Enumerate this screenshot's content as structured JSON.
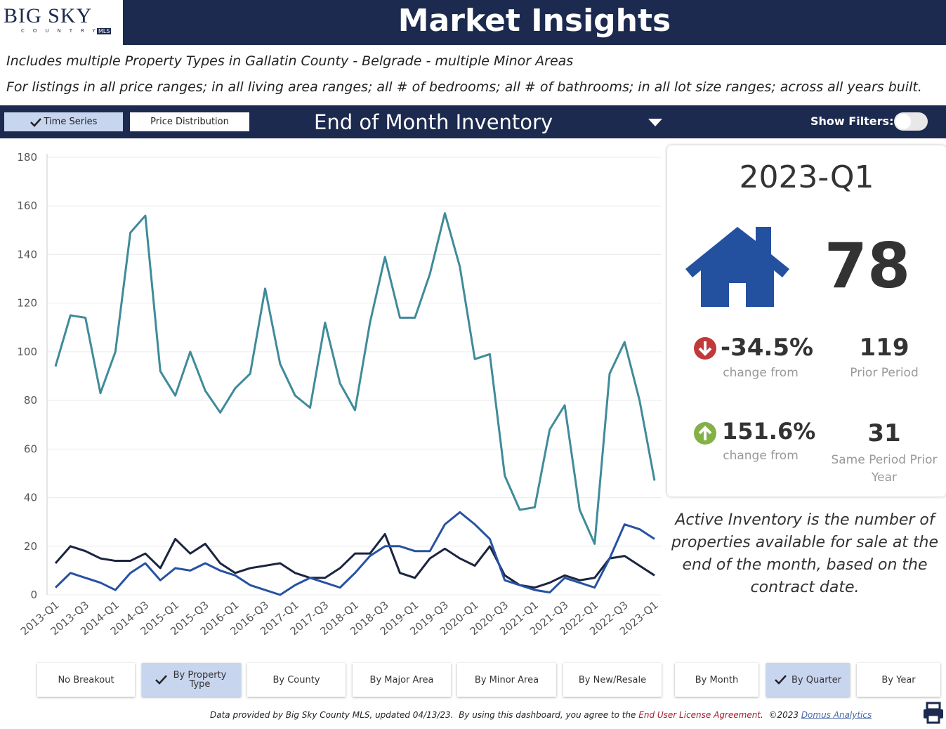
{
  "header": {
    "logo": "BIG SKY",
    "logo_sub": "COUNTRY",
    "logo_badge": "MLS",
    "title": "Market Insights"
  },
  "filters_text": [
    "Includes multiple Property Types in Gallatin County - Belgrade - multiple Minor Areas",
    "For listings in all price ranges; in all living area ranges; all # of bedrooms; all # of bathrooms; in all lot size ranges; across all years built."
  ],
  "toolbar": {
    "tabs": [
      "Time Series",
      "Price Distribution"
    ],
    "measure": "End of Month Inventory",
    "show_filters": "Show Filters:"
  },
  "chart_data": {
    "type": "line",
    "categories": [
      "2013-Q1",
      null,
      "2013-Q3",
      null,
      "2014-Q1",
      null,
      "2014-Q3",
      null,
      "2015-Q1",
      null,
      "2015-Q3",
      null,
      "2016-Q1",
      null,
      "2016-Q3",
      null,
      "2017-Q1",
      null,
      "2017-Q3",
      null,
      "2018-Q1",
      null,
      "2018-Q3",
      null,
      "2019-Q1",
      null,
      "2019-Q3",
      null,
      "2020-Q1",
      null,
      "2020-Q3",
      null,
      "2021-Q1",
      null,
      "2021-Q3",
      null,
      "2022-Q1",
      null,
      "2022-Q3",
      null,
      "2023-Q1"
    ],
    "series": [
      {
        "color": "#3f8b9a",
        "values": [
          94,
          115,
          114,
          83,
          100,
          149,
          156,
          92,
          82,
          100,
          84,
          75,
          85,
          91,
          126,
          95,
          82,
          77,
          112,
          87,
          76,
          112,
          139,
          114,
          114,
          132,
          157,
          135,
          97,
          99,
          49,
          35,
          36,
          68,
          78,
          35,
          21,
          91,
          104,
          80,
          47
        ]
      },
      {
        "color": "#1b2440",
        "values": [
          13,
          20,
          18,
          15,
          14,
          14,
          17,
          11,
          23,
          17,
          21,
          13,
          9,
          11,
          12,
          13,
          9,
          7,
          7,
          11,
          17,
          17,
          25,
          9,
          7,
          15,
          19,
          15,
          12,
          20,
          8,
          4,
          3,
          5,
          8,
          6,
          7,
          15,
          16,
          12,
          8
        ]
      },
      {
        "color": "#2752a3",
        "values": [
          3,
          9,
          7,
          5,
          2,
          9,
          13,
          6,
          11,
          10,
          13,
          10,
          8,
          4,
          2,
          0,
          4,
          7,
          5,
          3,
          9,
          16,
          20,
          20,
          18,
          18,
          29,
          34,
          29,
          23,
          6,
          4,
          2,
          1,
          7,
          5,
          3,
          15,
          29,
          27,
          23
        ]
      }
    ],
    "ylim": [
      0,
      180
    ],
    "yticks": [
      0,
      20,
      40,
      60,
      80,
      100,
      120,
      140,
      160,
      180
    ],
    "grid": true
  },
  "kpi": {
    "period": "2023-Q1",
    "value": "78",
    "change1": "-34.5%",
    "change1_label": "change from",
    "prior1": "119",
    "prior1_label": "Prior Period",
    "change2": "151.6%",
    "change2_label": "change from",
    "prior2": "31",
    "prior2_label": "Same Period Prior Year"
  },
  "description": "Active Inventory is the number of properties available for sale at the end of the month, based on the contract date.",
  "breakouts": [
    "No Breakout",
    "By Property Type",
    "By County",
    "By Major Area",
    "By Minor Area",
    "By New/Resale",
    "By Month",
    "By Quarter",
    "By Year"
  ],
  "footer": {
    "text": "Data provided by Big Sky County MLS, updated 04/13/23.  By using this dashboard, you agree to the ",
    "link1": "End User License Agreement",
    "text2": ".  ©2023 ",
    "link2": "Domus Analytics"
  }
}
